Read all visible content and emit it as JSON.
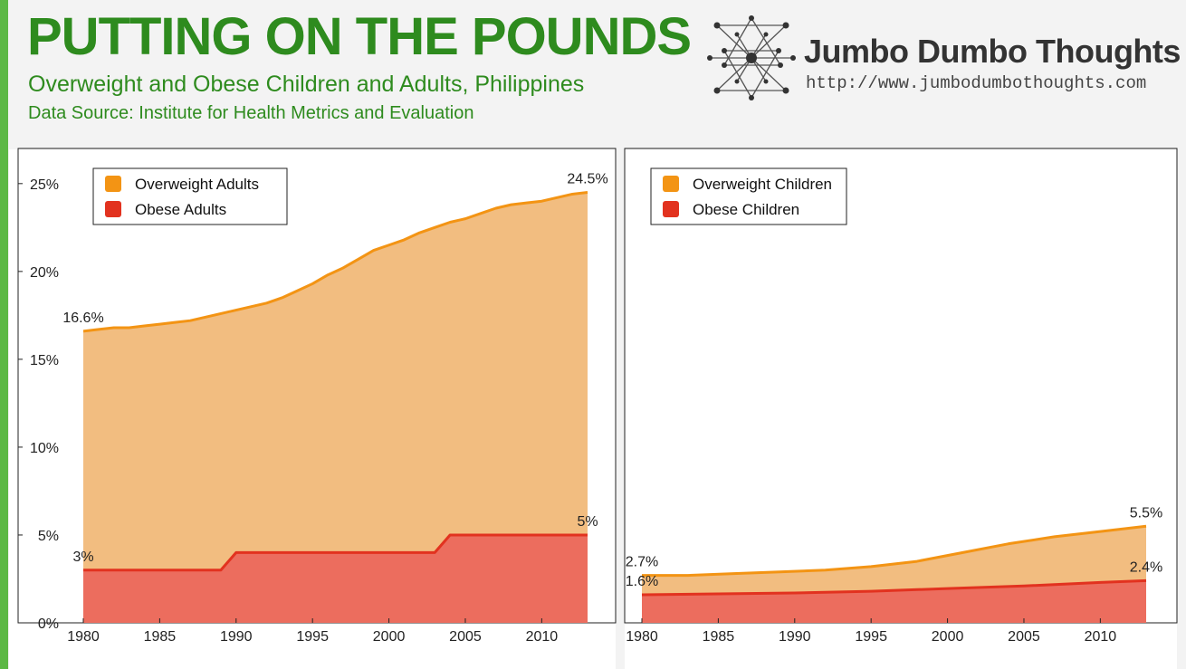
{
  "header": {
    "title": "PUTTING ON THE POUNDS",
    "subtitle": "Overweight and Obese Children and Adults, Philippines",
    "source": "Data Source: Institute for Health Metrics and Evaluation"
  },
  "brand": {
    "name": "Jumbo Dumbo Thoughts",
    "url": "http://www.jumbodumbothoughts.com"
  },
  "colors": {
    "overweight_fill": "#f2bd80",
    "overweight_line": "#f39414",
    "obese_fill": "#ec6d5e",
    "obese_line": "#e2321f",
    "accent_green": "#2e8b1e"
  },
  "chart_data": [
    {
      "type": "area",
      "xlim": [
        1980,
        2013
      ],
      "ylim": [
        0,
        27
      ],
      "y_ticks": [
        "0%",
        "5%",
        "10%",
        "15%",
        "20%",
        "25%"
      ],
      "x_ticks": [
        "1980",
        "1985",
        "1990",
        "1995",
        "2000",
        "2005",
        "2010"
      ],
      "grid": false,
      "legend_position": "top-left",
      "series": [
        {
          "name": "Overweight Adults",
          "x": [
            1980,
            1981,
            1982,
            1983,
            1984,
            1985,
            1986,
            1987,
            1988,
            1989,
            1990,
            1991,
            1992,
            1993,
            1994,
            1995,
            1996,
            1997,
            1998,
            1999,
            2000,
            2001,
            2002,
            2003,
            2004,
            2005,
            2006,
            2007,
            2008,
            2009,
            2010,
            2011,
            2012,
            2013
          ],
          "values": [
            16.6,
            16.7,
            16.8,
            16.8,
            16.9,
            17.0,
            17.1,
            17.2,
            17.4,
            17.6,
            17.8,
            18.0,
            18.2,
            18.5,
            18.9,
            19.3,
            19.8,
            20.2,
            20.7,
            21.2,
            21.5,
            21.8,
            22.2,
            22.5,
            22.8,
            23.0,
            23.3,
            23.6,
            23.8,
            23.9,
            24.0,
            24.2,
            24.4,
            24.5
          ]
        },
        {
          "name": "Obese Adults",
          "x": [
            1980,
            1989,
            1990,
            2003,
            2004,
            2013
          ],
          "values": [
            3,
            3,
            4,
            4,
            5,
            5
          ]
        }
      ],
      "annotations": [
        "16.6%",
        "24.5%",
        "3%",
        "5%"
      ]
    },
    {
      "type": "area",
      "xlim": [
        1980,
        2013
      ],
      "ylim": [
        0,
        27
      ],
      "x_ticks": [
        "1980",
        "1985",
        "1990",
        "1995",
        "2000",
        "2005",
        "2010"
      ],
      "grid": false,
      "legend_position": "top-left",
      "series": [
        {
          "name": "Overweight Children",
          "x": [
            1980,
            1983,
            1986,
            1989,
            1992,
            1995,
            1998,
            2001,
            2004,
            2007,
            2010,
            2013
          ],
          "values": [
            2.7,
            2.7,
            2.8,
            2.9,
            3.0,
            3.2,
            3.5,
            4.0,
            4.5,
            4.9,
            5.2,
            5.5
          ]
        },
        {
          "name": "Obese Children",
          "x": [
            1980,
            1985,
            1990,
            1995,
            2000,
            2005,
            2010,
            2013
          ],
          "values": [
            1.6,
            1.65,
            1.7,
            1.8,
            1.95,
            2.1,
            2.3,
            2.4
          ]
        }
      ],
      "annotations": [
        "2.7%",
        "1.6%",
        "5.5%",
        "2.4%"
      ]
    }
  ]
}
